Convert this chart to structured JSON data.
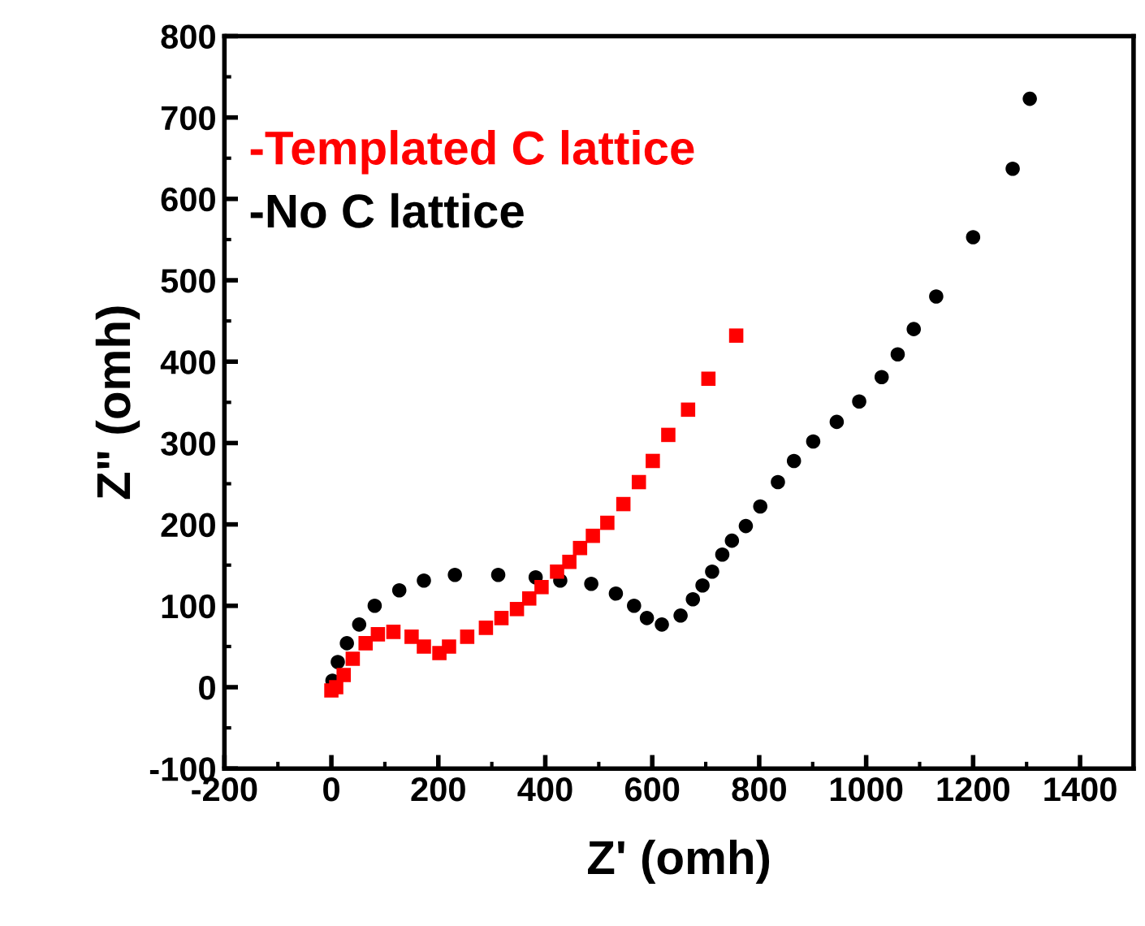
{
  "chart_data": {
    "type": "scatter",
    "xlabel": "Z' (omh)",
    "ylabel": "Z\" (omh)",
    "xlim": [
      -200,
      1500
    ],
    "xticks": [
      -200,
      0,
      200,
      400,
      600,
      800,
      1000,
      1200,
      1400
    ],
    "ylim": [
      -100,
      800
    ],
    "yticks": [
      -100,
      0,
      100,
      200,
      300,
      400,
      500,
      600,
      700,
      800
    ],
    "legend": "top left",
    "grid": false,
    "series": [
      {
        "name": "-Templated C lattice",
        "color": "#ff0000",
        "marker": "square",
        "x": [
          0,
          9,
          23,
          40,
          64,
          87,
          116,
          150,
          173,
          202,
          220,
          254,
          289,
          318,
          347,
          370,
          393,
          422,
          445,
          465,
          489,
          516,
          546,
          575,
          601,
          630,
          667,
          705,
          757
        ],
        "values": [
          -4,
          0,
          15,
          35,
          54,
          65,
          68,
          62,
          50,
          42,
          50,
          62,
          73,
          85,
          96,
          109,
          123,
          142,
          154,
          171,
          186,
          202,
          225,
          252,
          278,
          310,
          341,
          379,
          432
        ]
      },
      {
        "name": "-No C lattice",
        "color": "#000000",
        "marker": "circle",
        "x": [
          2,
          12,
          29,
          52,
          81,
          127,
          173,
          231,
          312,
          382,
          428,
          486,
          532,
          566,
          590,
          618,
          653,
          676,
          694,
          712,
          731,
          749,
          775,
          802,
          835,
          865,
          901,
          945,
          987,
          1029,
          1059,
          1089,
          1131,
          1200,
          1274,
          1306
        ],
        "values": [
          8,
          31,
          54,
          77,
          100,
          119,
          131,
          138,
          138,
          135,
          131,
          127,
          115,
          100,
          85,
          77,
          88,
          108,
          125,
          142,
          163,
          180,
          198,
          222,
          252,
          278,
          302,
          326,
          351,
          381,
          409,
          440,
          480,
          553,
          637,
          723
        ]
      }
    ]
  }
}
